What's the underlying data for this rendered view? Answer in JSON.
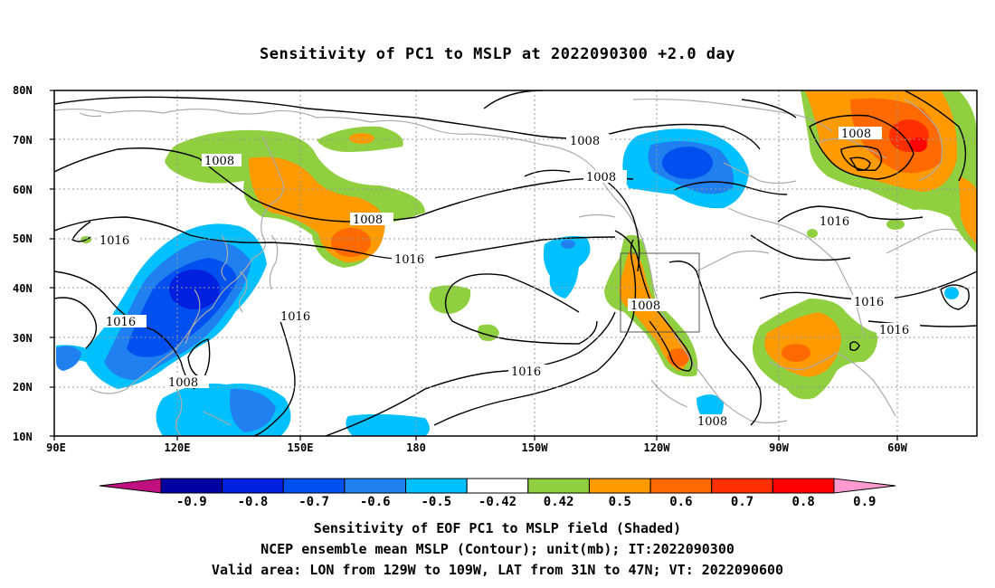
{
  "title": "Sensitivity of PC1 to MSLP at 2022090300 +2.0 day",
  "map": {
    "lat_labels": [
      "80N",
      "70N",
      "60N",
      "50N",
      "40N",
      "30N",
      "20N",
      "10N"
    ],
    "lon_labels": [
      "90E",
      "120E",
      "150E",
      "180",
      "150W",
      "120W",
      "90W",
      "60W"
    ],
    "contour_labels": [
      {
        "text": "1008",
        "id": "c1008a"
      },
      {
        "text": "1008",
        "id": "c1008b"
      },
      {
        "text": "1008",
        "id": "c1008c"
      },
      {
        "text": "1008",
        "id": "c1008d"
      },
      {
        "text": "1008",
        "id": "c1008e"
      },
      {
        "text": "1008",
        "id": "c1008f"
      },
      {
        "text": "1008",
        "id": "c1008g"
      },
      {
        "text": "1008",
        "id": "c1008h"
      },
      {
        "text": "1016",
        "id": "c1016a"
      },
      {
        "text": "1016",
        "id": "c1016b"
      },
      {
        "text": "1016",
        "id": "c1016c"
      },
      {
        "text": "1016",
        "id": "c1016d"
      },
      {
        "text": "1016",
        "id": "c1016e"
      },
      {
        "text": "1016",
        "id": "c1016f"
      },
      {
        "text": "1016",
        "id": "c1016g"
      },
      {
        "text": "1016",
        "id": "c1016h"
      }
    ],
    "valid_area": {
      "lon_from": "129W",
      "lon_to": "109W",
      "lat_from": "31N",
      "lat_to": "47N"
    }
  },
  "colorbar": {
    "labels": [
      "-0.9",
      "-0.8",
      "-0.7",
      "-0.6",
      "-0.5",
      "-0.42",
      "0.42",
      "0.5",
      "0.6",
      "0.7",
      "0.8",
      "0.9"
    ],
    "colors": [
      "#0000a0",
      "#0020e0",
      "#0050f0",
      "#2080f0",
      "#00c0ff",
      "#ffffff",
      "#90d040",
      "#ff9a00",
      "#ff6a00",
      "#ff3000",
      "#ff0000"
    ],
    "under_color": "#c01080",
    "over_color": "#ff9ad0"
  },
  "captions": {
    "line1": "Sensitivity of EOF PC1 to MSLP field (Shaded)",
    "line2": "NCEP ensemble mean MSLP (Contour); unit(mb); IT:2022090300",
    "line3": "Valid area: LON from 129W to 109W, LAT from 31N to 47N; VT: 2022090600"
  }
}
